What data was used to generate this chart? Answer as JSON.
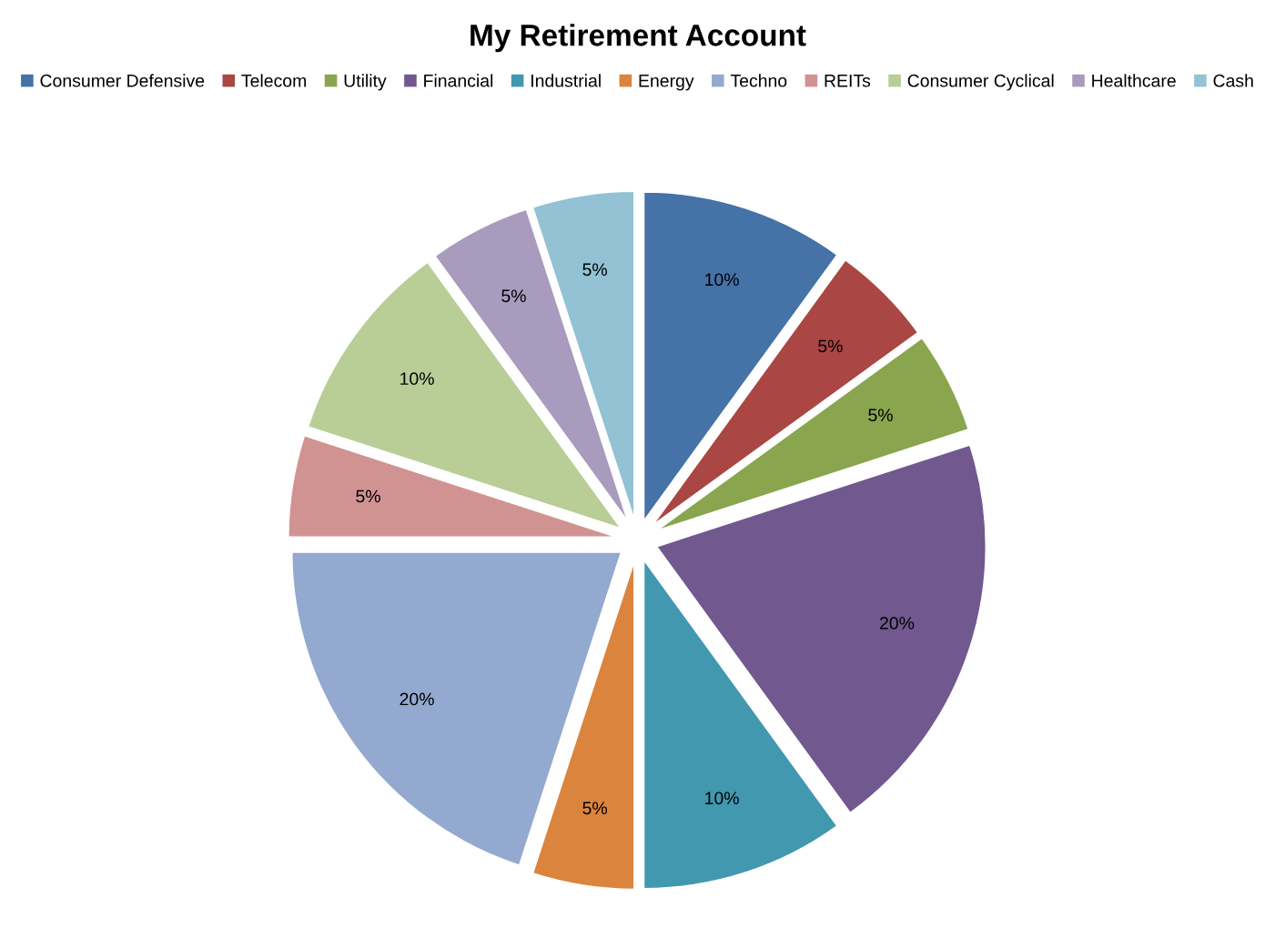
{
  "chart_data": {
    "type": "pie",
    "title": "My Retirement Account",
    "categories": [
      "Consumer Defensive",
      "Telecom",
      "Utility",
      "Financial",
      "Industrial",
      "Energy",
      "Techno",
      "REITs",
      "Consumer Cyclical",
      "Healthcare",
      "Cash"
    ],
    "values": [
      10,
      5,
      5,
      20,
      10,
      5,
      20,
      5,
      10,
      5,
      5
    ],
    "colors": [
      "#4572a7",
      "#aa4643",
      "#89a54e",
      "#71588f",
      "#4198af",
      "#db843d",
      "#93a9cf",
      "#d19392",
      "#b9cd96",
      "#a99bbd",
      "#92c2d4"
    ],
    "value_labels": [
      "10%",
      "5%",
      "5%",
      "20%",
      "10%",
      "5%",
      "20%",
      "5%",
      "10%",
      "5%",
      "5%"
    ],
    "legend": "top"
  }
}
